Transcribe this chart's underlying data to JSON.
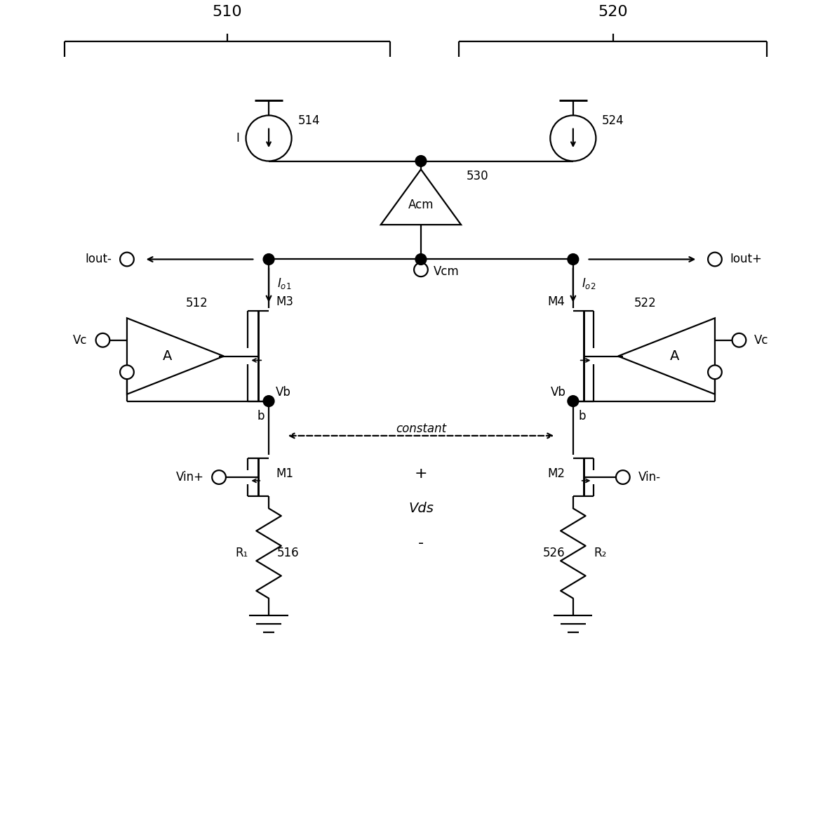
{
  "bg_color": "#ffffff",
  "label_510": "510",
  "label_520": "520",
  "label_514": "514",
  "label_524": "524",
  "label_530": "530",
  "label_512": "512",
  "label_522": "522",
  "label_516": "516",
  "label_526": "526",
  "label_Acm": "Acm",
  "label_A": "A",
  "label_M1": "M1",
  "label_M2": "M2",
  "label_M3": "M3",
  "label_M4": "M4",
  "label_R1": "R₁",
  "label_R2": "R₂",
  "label_I": "I",
  "label_Io1": "Iₒ₁",
  "label_Io2": "Iₒ₂",
  "label_Iout_minus": "Iout-",
  "label_Iout_plus": "Iout+",
  "label_Vc": "Vc",
  "label_Vin_plus": "Vin+",
  "label_Vin_minus": "Vin-",
  "label_Vb": "Vb",
  "label_Vcm": "Vcm",
  "label_b": "b",
  "label_constant": "constant",
  "label_plus": "+",
  "label_Vds": "Vds",
  "label_minus": "-"
}
